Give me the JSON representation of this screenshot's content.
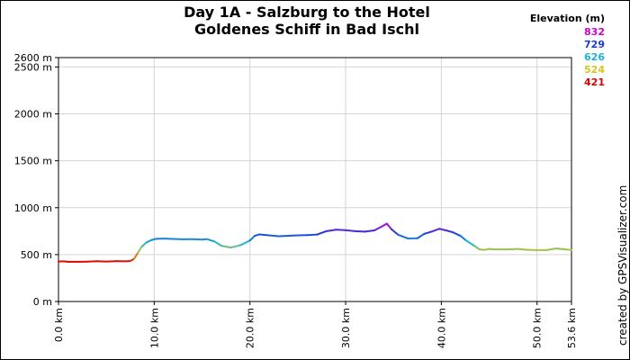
{
  "chart_data": {
    "type": "line",
    "title_lines": [
      "Day 1A - Salzburg to the  Hotel",
      "Goldenes Schiff in Bad Ischl"
    ],
    "xlabel": "",
    "ylabel": "",
    "xlim": [
      0,
      53.6
    ],
    "ylim": [
      0,
      2600
    ],
    "x_ticks": [
      {
        "value": 0,
        "label": "0.0 km"
      },
      {
        "value": 10,
        "label": "10.0 km"
      },
      {
        "value": 20,
        "label": "20.0 km"
      },
      {
        "value": 30,
        "label": "30.0 km"
      },
      {
        "value": 40,
        "label": "40.0 km"
      },
      {
        "value": 50,
        "label": "50.0 km"
      },
      {
        "value": 53.6,
        "label": "53.6 km"
      }
    ],
    "y_ticks": [
      {
        "value": 0,
        "label": "0 m"
      },
      {
        "value": 500,
        "label": "500 m"
      },
      {
        "value": 1000,
        "label": "1000 m"
      },
      {
        "value": 1500,
        "label": "1500 m"
      },
      {
        "value": 2000,
        "label": "2000 m"
      },
      {
        "value": 2500,
        "label": "2500 m"
      },
      {
        "value": 2600,
        "label": "2600 m"
      }
    ],
    "grid": true,
    "legend": {
      "title": "Elevation (m)",
      "placement": "top-right",
      "entries": [
        {
          "label": "832",
          "color": "#d000d0"
        },
        {
          "label": "729",
          "color": "#1a3adf"
        },
        {
          "label": "626",
          "color": "#19b6d2"
        },
        {
          "label": "524",
          "color": "#d7c61c"
        },
        {
          "label": "421",
          "color": "#e00000"
        }
      ]
    },
    "series": [
      {
        "color_by": "elevation",
        "x": [
          0,
          0.5,
          1,
          2,
          3,
          4,
          5,
          6,
          7,
          7.5,
          7.9,
          8.3,
          8.7,
          9.2,
          9.7,
          10.2,
          11,
          12,
          13,
          14,
          15,
          15.5,
          16.3,
          17,
          18,
          19,
          20,
          20.5,
          21,
          22,
          23,
          24,
          25,
          26,
          27,
          28,
          29,
          30,
          31,
          32,
          33,
          33.8,
          34.3,
          34.8,
          35.5,
          36.5,
          37.5,
          38.2,
          39,
          39.8,
          40.5,
          41.2,
          42,
          42.6,
          43.5,
          44,
          44.5,
          45,
          45.5,
          46,
          47,
          48,
          49,
          50,
          51,
          52,
          53,
          53.6
        ],
        "y": [
          426,
          428,
          423,
          423,
          425,
          429,
          426,
          430,
          428,
          432,
          455,
          520,
          585,
          630,
          655,
          668,
          670,
          667,
          663,
          664,
          660,
          665,
          640,
          595,
          575,
          600,
          650,
          700,
          715,
          705,
          696,
          700,
          705,
          708,
          713,
          750,
          765,
          760,
          750,
          745,
          758,
          800,
          830,
          770,
          710,
          672,
          674,
          720,
          745,
          775,
          758,
          738,
          700,
          650,
          590,
          555,
          550,
          560,
          555,
          555,
          555,
          560,
          550,
          548,
          548,
          565,
          555,
          548
        ]
      }
    ]
  },
  "credit": "created by GPSVisualizer.com"
}
